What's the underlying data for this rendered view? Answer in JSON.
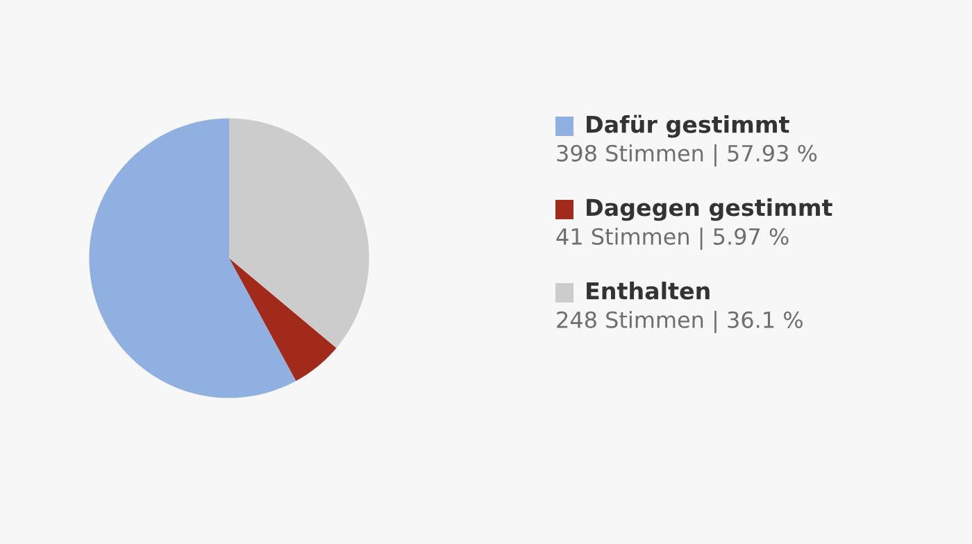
{
  "chart_data": {
    "type": "pie",
    "categories": [
      "Dafür gestimmt",
      "Dagegen gestimmt",
      "Enthalten"
    ],
    "values": [
      398,
      41,
      248
    ],
    "value_labels": [
      "398 Stimmen | 57.93 %",
      "41 Stimmen | 5.97 %",
      "248 Stimmen | 36.1 %"
    ],
    "colors": [
      "#8fb0e0",
      "#a12a1a",
      "#cccccc"
    ],
    "legend": "right"
  }
}
